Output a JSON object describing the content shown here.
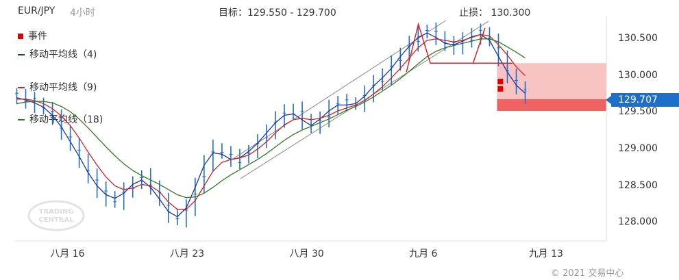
{
  "header": {
    "symbol": "EUR/JPY",
    "timeframe": "4小时",
    "target": "目标：129.550 - 129.700",
    "stop": "止损：  130.300"
  },
  "legend": [
    {
      "label": "事件",
      "color": "#e00000",
      "kind": "square"
    },
    {
      "label": "移动平均线（4)",
      "color": "#1a2fb5",
      "kind": "line"
    },
    {
      "label": "移动平均线（9)",
      "color": "#d62020",
      "kind": "line"
    },
    {
      "label": "移动平均线（18)",
      "color": "#2e7a1a",
      "kind": "line"
    }
  ],
  "current_price": "129.707",
  "copyright": "© 2021 交易中心",
  "watermark": {
    "line1": "TRADING",
    "line2": "CENTRAL"
  },
  "colors": {
    "candles": "#1e6fc8",
    "ma4": "#1a2fb5",
    "ma9": "#d62020",
    "ma18": "#2e7a1a",
    "channel": "#888888",
    "pattern": "#e02020",
    "stop_zone": "#f7c3c3",
    "target_zone": "#f06262"
  },
  "chart_data": {
    "type": "line",
    "title": "",
    "xlabel": "",
    "ylabel": "",
    "ylim": [
      127.75,
      130.75
    ],
    "y_ticks": [
      "128.000",
      "128.500",
      "129.000",
      "129.500",
      "130.000",
      "130.500"
    ],
    "x_ticks": [
      {
        "label": "八月 16",
        "x": 15
      },
      {
        "label": "八月 23",
        "x": 22
      },
      {
        "label": "八月 30",
        "x": 29
      },
      {
        "label": "九月 6",
        "x": 36
      },
      {
        "label": "九月 13",
        "x": 43
      }
    ],
    "x_range": [
      11.9,
      46.5
    ],
    "last_x": 41.75,
    "grid": false,
    "legend_position": "top-left",
    "close": [
      129.72,
      129.65,
      129.62,
      129.55,
      129.42,
      129.25,
      129.05,
      128.85,
      128.62,
      128.45,
      128.33,
      128.3,
      128.42,
      128.55,
      128.62,
      128.5,
      128.3,
      128.1,
      128.05,
      128.2,
      128.5,
      128.82,
      129.0,
      128.95,
      128.85,
      128.88,
      128.98,
      129.1,
      129.25,
      129.4,
      129.5,
      129.52,
      129.4,
      129.3,
      129.42,
      129.55,
      129.65,
      129.62,
      129.62,
      129.75,
      129.9,
      130.0,
      130.15,
      130.3,
      130.45,
      130.58,
      130.62,
      130.52,
      130.42,
      130.4,
      130.48,
      130.55,
      130.58,
      130.48,
      130.22,
      130.02,
      129.82,
      129.72
    ],
    "ma_series": [
      {
        "name": "移动平均线（4)",
        "values": [
          129.7,
          129.67,
          129.63,
          129.57,
          129.46,
          129.3,
          129.1,
          128.9,
          128.68,
          128.5,
          128.38,
          128.33,
          128.4,
          128.52,
          128.58,
          128.48,
          128.32,
          128.15,
          128.08,
          128.2,
          128.48,
          128.78,
          128.95,
          128.93,
          128.86,
          128.88,
          128.97,
          129.08,
          129.22,
          129.36,
          129.46,
          129.48,
          129.4,
          129.32,
          129.41,
          129.52,
          129.6,
          129.6,
          129.62,
          129.72,
          129.86,
          129.97,
          130.1,
          130.26,
          130.4,
          130.52,
          130.58,
          130.52,
          130.44,
          130.42,
          130.47,
          130.53,
          130.56,
          130.48,
          130.26,
          130.05,
          129.87,
          129.76
        ]
      },
      {
        "name": "移动平均线（9)",
        "values": [
          129.68,
          129.68,
          129.66,
          129.62,
          129.55,
          129.45,
          129.32,
          129.15,
          128.96,
          128.78,
          128.62,
          128.5,
          128.45,
          128.47,
          128.52,
          128.5,
          128.42,
          128.28,
          128.18,
          128.18,
          128.3,
          128.5,
          128.7,
          128.82,
          128.86,
          128.88,
          128.92,
          129.0,
          129.1,
          129.22,
          129.33,
          129.4,
          129.42,
          129.4,
          129.42,
          129.46,
          129.52,
          129.56,
          129.6,
          129.66,
          129.75,
          129.85,
          129.97,
          130.1,
          130.24,
          130.38,
          130.48,
          130.5,
          130.48,
          130.46,
          130.48,
          130.52,
          130.56,
          130.54,
          130.42,
          130.28,
          130.12,
          130.0
        ]
      },
      {
        "name": "移动平均线（18)",
        "values": [
          129.62,
          129.64,
          129.65,
          129.65,
          129.63,
          129.58,
          129.51,
          129.41,
          129.29,
          129.16,
          129.03,
          128.91,
          128.8,
          128.71,
          128.64,
          128.58,
          128.52,
          128.45,
          128.38,
          128.34,
          128.35,
          128.4,
          128.48,
          128.57,
          128.65,
          128.72,
          128.79,
          128.86,
          128.94,
          129.03,
          129.12,
          129.2,
          129.26,
          129.31,
          129.36,
          129.41,
          129.47,
          129.53,
          129.58,
          129.64,
          129.71,
          129.79,
          129.87,
          129.96,
          130.06,
          130.16,
          130.26,
          130.33,
          130.38,
          130.41,
          130.44,
          130.47,
          130.5,
          130.5,
          130.46,
          130.39,
          130.32,
          130.24
        ]
      }
    ],
    "channel_lines": [
      {
        "x": [
          24.6,
          37.1
        ],
        "y": [
          128.86,
          130.75
        ]
      },
      {
        "x": [
          25.1,
          39.6
        ],
        "y": [
          128.6,
          130.74
        ]
      }
    ],
    "pattern_line": {
      "x": [
        34.8,
        35.5,
        36.2,
        38.7,
        39.4
      ],
      "y": [
        130.05,
        130.7,
        130.17,
        130.17,
        130.65
      ]
    },
    "neckline": {
      "x": [
        36.2,
        41.0
      ],
      "y": [
        130.17,
        130.17
      ]
    },
    "zones": [
      {
        "from": 129.68,
        "to": 130.17,
        "x_start": 40.1,
        "color": "stop_zone"
      },
      {
        "from": 129.52,
        "to": 129.68,
        "x_start": 40.1,
        "color": "target_zone"
      }
    ],
    "events": [
      {
        "x": 40.3,
        "y": 129.92
      },
      {
        "x": 40.3,
        "y": 129.82
      }
    ]
  }
}
